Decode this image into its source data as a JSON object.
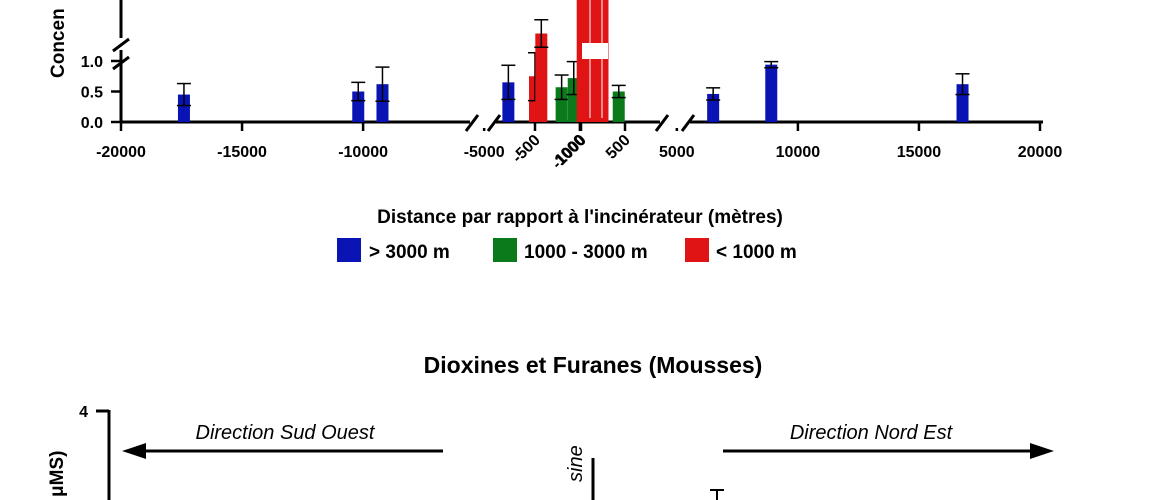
{
  "chart_data": [
    {
      "type": "bar",
      "title": "",
      "xlabel": "Distance par rapport à l'incinérateur (mètres)",
      "ylabel": "Concen",
      "x_scale": "broken",
      "x_ticks": [
        "-20000",
        "-15000",
        "-10000",
        "-5000",
        "-1000",
        "-500",
        "0",
        "500",
        "1000",
        "5000",
        "10000",
        "15000",
        "20000"
      ],
      "y_ticks": [
        "0.0",
        "0.5",
        "1.0"
      ],
      "y_axis_break": true,
      "x_axis_breaks": true,
      "legend": {
        "placement": "bottom-center",
        "entries": [
          {
            "label": "> 3000 m",
            "color": "#0a14b4"
          },
          {
            "label": "1000 - 3000 m",
            "color": "#0a7a1a"
          },
          {
            "label": "< 1000 m",
            "color": "#e01414"
          }
        ]
      },
      "series": [
        {
          "color": "#0a14b4",
          "points": [
            {
              "x": -17400,
              "y": 0.45,
              "err": 0.18
            },
            {
              "x": -10200,
              "y": 0.5,
              "err": 0.15
            },
            {
              "x": -9200,
              "y": 0.62,
              "err": 0.28
            },
            {
              "x": -4000,
              "y": 0.65,
              "err": 0.28
            },
            {
              "x": 6500,
              "y": 0.46,
              "err": 0.1
            },
            {
              "x": 8900,
              "y": 0.94,
              "err": 0.05
            },
            {
              "x": 16800,
              "y": 0.62,
              "err": 0.17
            }
          ]
        },
        {
          "color": "#0a7a1a",
          "points": [
            {
              "x": -1800,
              "y": 0.57,
              "err": 0.2
            },
            {
              "x": -1300,
              "y": 0.72,
              "err": 0.27
            },
            {
              "x": 1200,
              "y": 0.53,
              "err": 0.13
            },
            {
              "x": 2600,
              "y": 0.5,
              "err": 0.1
            }
          ]
        },
        {
          "color": "#e01414",
          "points": [
            {
              "x": -500,
              "y": 0.75,
              "err": 0.4
            },
            {
              "x": -430,
              "y": 1.5,
              "err": 0.25
            },
            {
              "x": 30,
              "y": 4.0,
              "err": 0
            },
            {
              "x": 150,
              "y": 4.0,
              "err": 0
            },
            {
              "x": 250,
              "y": 4.0,
              "err": 0
            }
          ]
        }
      ]
    },
    {
      "type": "bar",
      "title": "Dioxines et Furanes (Mousses)",
      "ylabel": "μMS)",
      "y_ticks": [
        "4"
      ],
      "annotations": [
        "Direction Sud Ouest",
        "Direction Nord Est",
        "sine"
      ]
    }
  ]
}
